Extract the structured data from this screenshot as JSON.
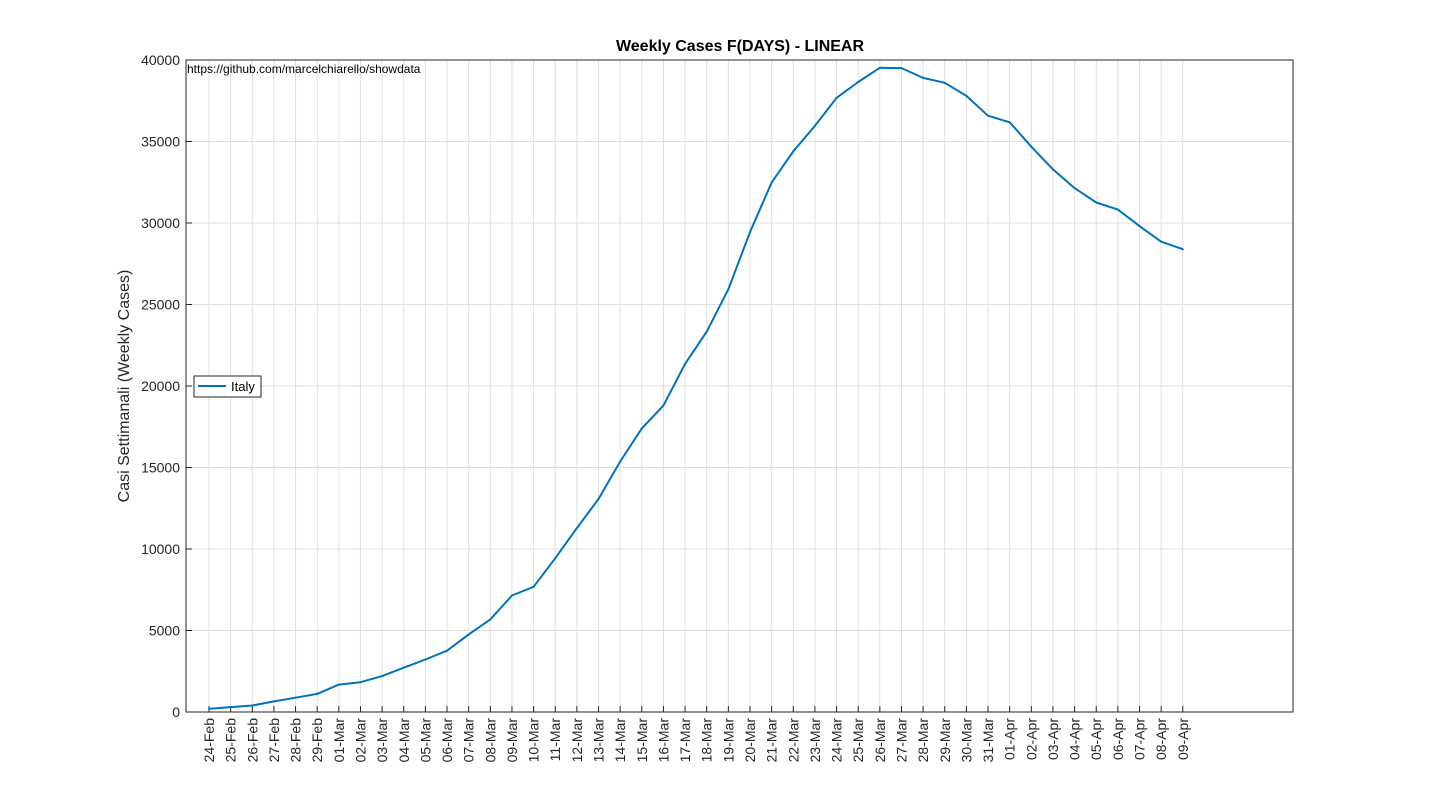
{
  "chart_data": {
    "type": "line",
    "title": "Weekly Cases F(DAYS) - LINEAR",
    "xlabel": "",
    "ylabel": "Casi Settimanali (Weekly Cases)",
    "annotation": "https://github.com/marcelchiarello/showdata",
    "ylim": [
      0,
      40000
    ],
    "yticks": [
      0,
      5000,
      10000,
      15000,
      20000,
      25000,
      30000,
      35000,
      40000
    ],
    "grid": true,
    "legend_position": "left",
    "categories": [
      "24-Feb",
      "25-Feb",
      "26-Feb",
      "27-Feb",
      "28-Feb",
      "29-Feb",
      "01-Mar",
      "02-Mar",
      "03-Mar",
      "04-Mar",
      "05-Mar",
      "06-Mar",
      "07-Mar",
      "08-Mar",
      "09-Mar",
      "10-Mar",
      "11-Mar",
      "12-Mar",
      "13-Mar",
      "14-Mar",
      "15-Mar",
      "16-Mar",
      "17-Mar",
      "18-Mar",
      "19-Mar",
      "20-Mar",
      "21-Mar",
      "22-Mar",
      "23-Mar",
      "24-Mar",
      "25-Mar",
      "26-Mar",
      "27-Mar",
      "28-Mar",
      "29-Mar",
      "30-Mar",
      "31-Mar",
      "01-Apr",
      "02-Apr",
      "03-Apr",
      "04-Apr",
      "05-Apr",
      "06-Apr",
      "07-Apr",
      "08-Apr",
      "09-Apr"
    ],
    "series": [
      {
        "name": "Italy",
        "color": "#0072bd",
        "values": [
          200,
          300,
          400,
          650,
          880,
          1110,
          1680,
          1830,
          2200,
          2720,
          3220,
          3760,
          4760,
          5680,
          7150,
          7680,
          9430,
          11280,
          13070,
          15370,
          17400,
          18800,
          21360,
          23330,
          25940,
          29440,
          32480,
          34400,
          35960,
          37680,
          38650,
          39520,
          39500,
          38900,
          38600,
          37800,
          36580,
          36180,
          34680,
          33290,
          32140,
          31260,
          30820,
          29810,
          28850,
          28390
        ]
      }
    ]
  }
}
